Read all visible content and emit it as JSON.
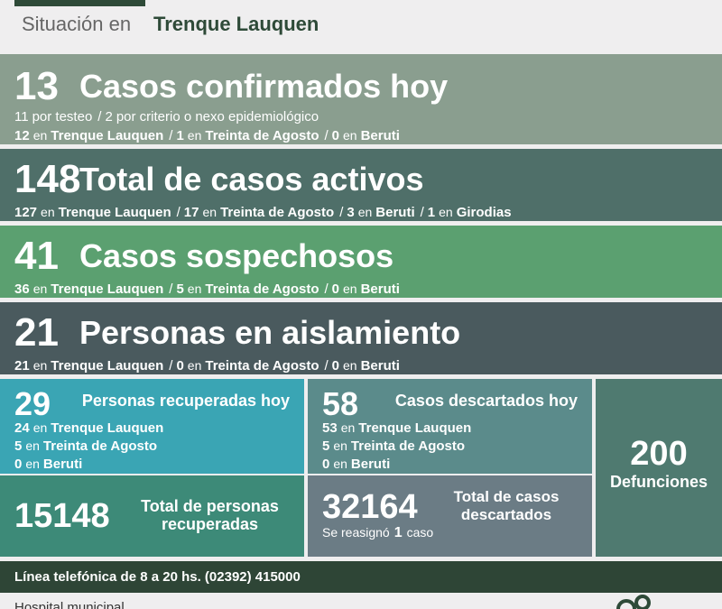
{
  "header": {
    "label": "Situación en",
    "place": "Trenque Lauquen"
  },
  "separator": "/",
  "connector": "en",
  "confirmed": {
    "count": 13,
    "title": "Casos confirmados hoy",
    "by_method": [
      {
        "count": 11,
        "text": "por testeo"
      },
      {
        "count": 2,
        "text": "por criterio o nexo epidemiológico"
      }
    ],
    "by_place": [
      {
        "count": 12,
        "place": "Trenque Lauquen"
      },
      {
        "count": 1,
        "place": "Treinta de Agosto"
      },
      {
        "count": 0,
        "place": "Beruti"
      }
    ]
  },
  "active": {
    "count": 148,
    "title": "Total de casos activos",
    "by_place": [
      {
        "count": 127,
        "place": "Trenque Lauquen"
      },
      {
        "count": 17,
        "place": "Treinta de Agosto"
      },
      {
        "count": 3,
        "place": "Beruti"
      },
      {
        "count": 1,
        "place": "Girodias"
      }
    ]
  },
  "suspected": {
    "count": 41,
    "title": "Casos sospechosos",
    "by_place": [
      {
        "count": 36,
        "place": "Trenque Lauquen"
      },
      {
        "count": 5,
        "place": "Treinta de Agosto"
      },
      {
        "count": 0,
        "place": "Beruti"
      }
    ]
  },
  "isolation": {
    "count": 21,
    "title": "Personas en aislamiento",
    "by_place": [
      {
        "count": 21,
        "place": "Trenque Lauquen"
      },
      {
        "count": 0,
        "place": "Treinta de Agosto"
      },
      {
        "count": 0,
        "place": "Beruti"
      }
    ]
  },
  "recovered_today": {
    "count": 29,
    "title": "Personas recuperadas hoy",
    "by_place": [
      {
        "count": 24,
        "place": "Trenque Lauquen"
      },
      {
        "count": 5,
        "place": "Treinta de Agosto"
      },
      {
        "count": 0,
        "place": "Beruti"
      }
    ]
  },
  "discarded_today": {
    "count": 58,
    "title": "Casos descartados hoy",
    "by_place": [
      {
        "count": 53,
        "place": "Trenque Lauquen"
      },
      {
        "count": 5,
        "place": "Treinta de Agosto"
      },
      {
        "count": 0,
        "place": "Beruti"
      }
    ]
  },
  "recovered_total": {
    "count": 15148,
    "title": "Total de personas recuperadas"
  },
  "discarded_total": {
    "count": 32164,
    "title": "Total de casos descartados",
    "note": {
      "before": "Se reasignó",
      "count": 1,
      "after": "caso"
    }
  },
  "deaths": {
    "count": 200,
    "title": "Defunciones"
  },
  "footer": {
    "phone": "Línea telefónica de 8 a 20 hs. (02392) 415000"
  },
  "bottom": {
    "label": "Hospital municipal"
  }
}
